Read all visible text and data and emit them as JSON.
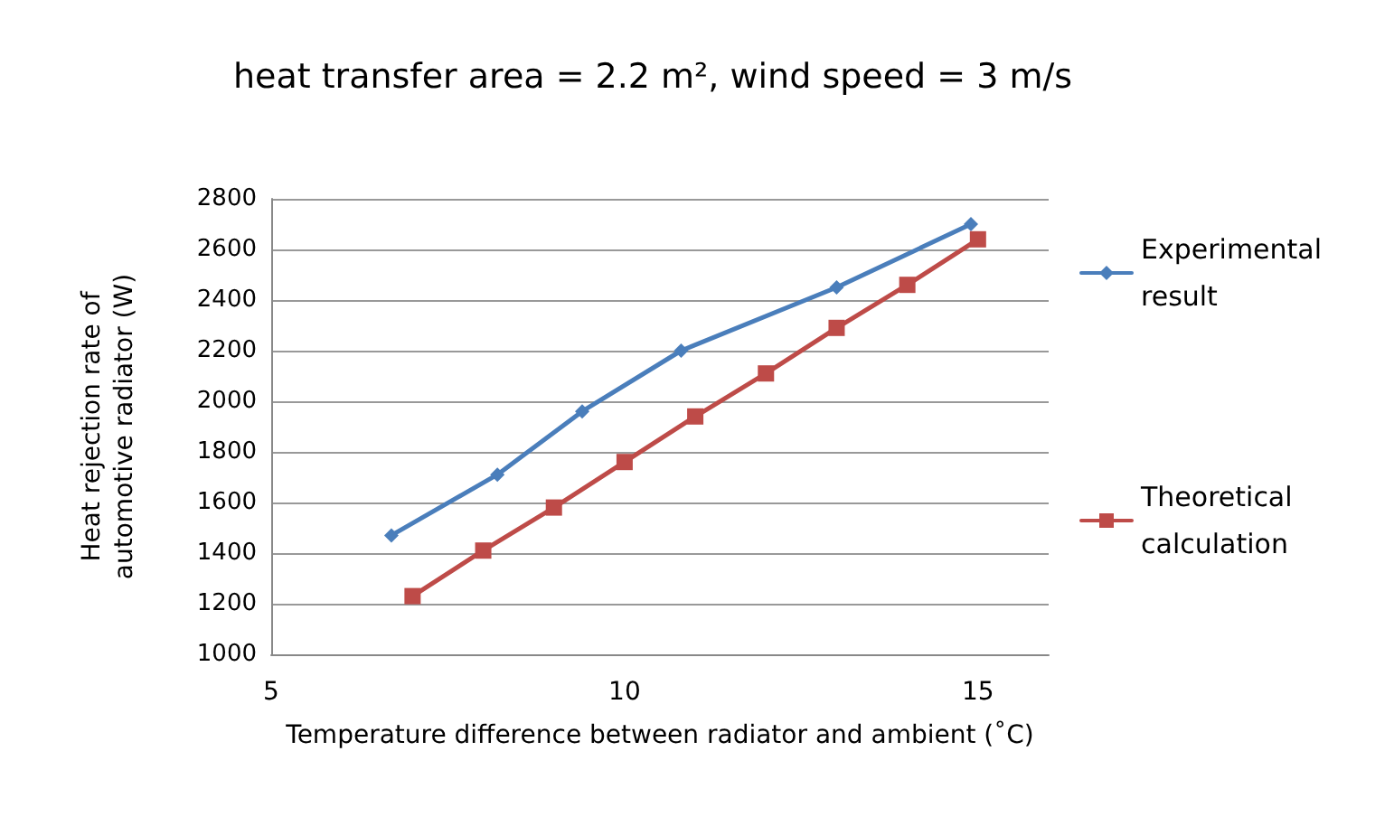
{
  "chart_data": {
    "type": "line",
    "title": "heat transfer area = 2.2 m², wind speed = 3 m/s",
    "xlabel": "Temperature difference between radiator and ambient (˚C)",
    "ylabel": "Heat rejection rate of automotive radiator (W)",
    "xlim": [
      5,
      16
    ],
    "xticks": [
      5,
      10,
      15
    ],
    "ylim": [
      1000,
      2800
    ],
    "yticks": [
      1000,
      1200,
      1400,
      1600,
      1800,
      2000,
      2200,
      2400,
      2600,
      2800
    ],
    "grid": "y",
    "legend": "right",
    "series": [
      {
        "name": "Experimental result",
        "color": "#4a7ebb",
        "marker": "diamond",
        "x": [
          6.7,
          8.2,
          9.4,
          10.8,
          13.0,
          14.9
        ],
        "values": [
          1470,
          1710,
          1960,
          2200,
          2450,
          2700
        ]
      },
      {
        "name": "Theoretical calculation",
        "color": "#be4b48",
        "marker": "square",
        "x": [
          7,
          8,
          9,
          10,
          11,
          12,
          13,
          14,
          15
        ],
        "values": [
          1230,
          1410,
          1580,
          1760,
          1940,
          2110,
          2290,
          2460,
          2640
        ]
      }
    ]
  }
}
